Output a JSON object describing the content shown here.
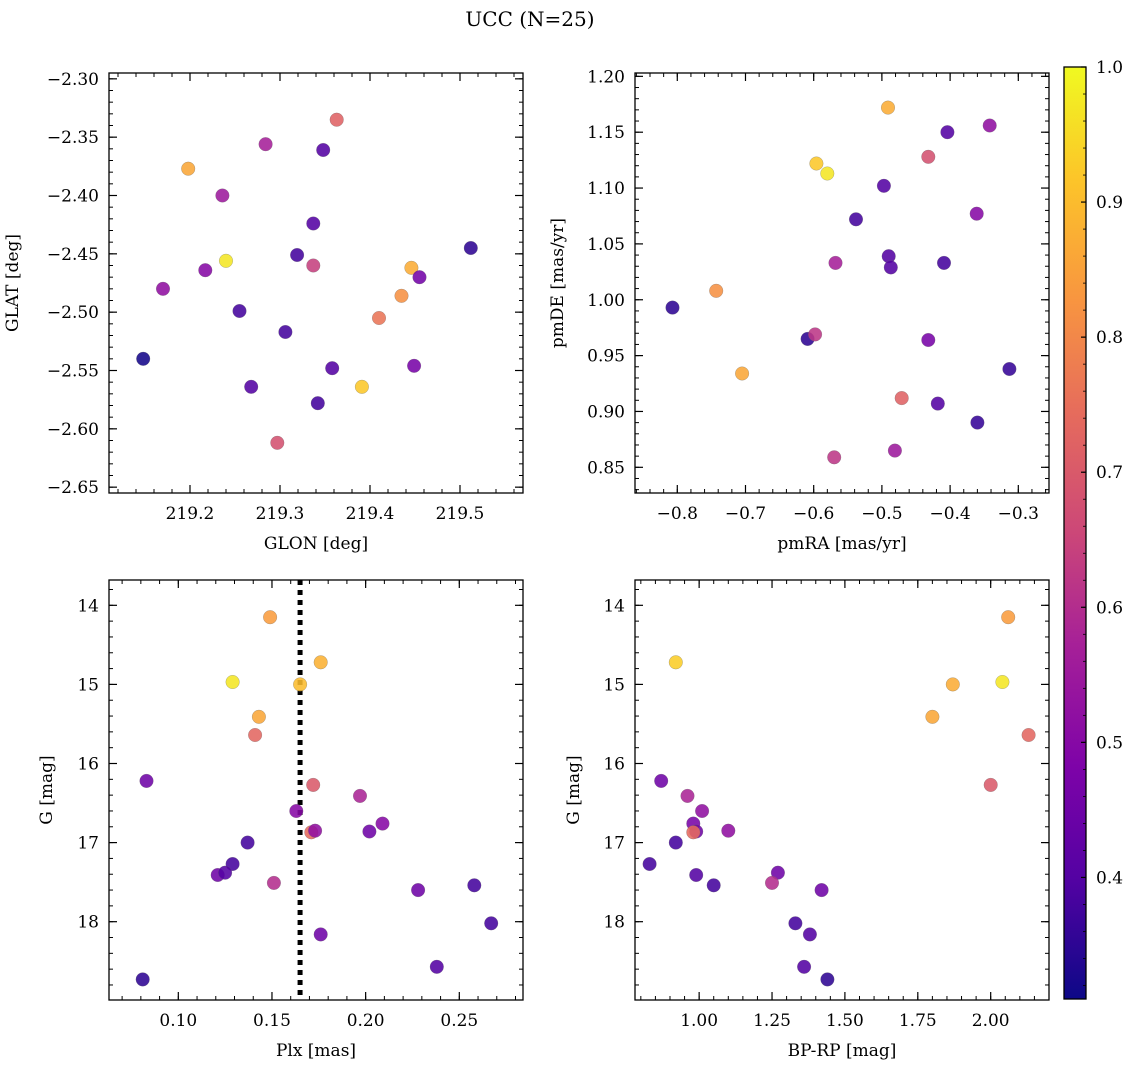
{
  "figure": {
    "title": "UCC (N=25)"
  },
  "colorbar": {
    "range": [
      0.31,
      1.0
    ],
    "ticks": [
      0.4,
      0.5,
      0.6,
      0.7,
      0.8,
      0.9,
      1.0
    ],
    "tick_labels": [
      "0.4",
      "0.5",
      "0.6",
      "0.7",
      "0.8",
      "0.9",
      "1.0"
    ],
    "colormap": "plasma"
  },
  "chart_data": [
    {
      "type": "scatter",
      "id": "glon-glat",
      "title": "",
      "xlabel": "GLON [deg]",
      "ylabel": "GLAT [deg]",
      "xlim": [
        219.11,
        219.57
      ],
      "ylim": [
        -2.655,
        -2.295
      ],
      "y_inverted": false,
      "xticks": [
        219.1,
        219.2,
        219.3,
        219.4,
        219.5
      ],
      "xtick_labels": [
        "219.1",
        "219.2",
        "219.3",
        "219.4",
        "219.5"
      ],
      "yticks": [
        -2.3,
        -2.35,
        -2.4,
        -2.45,
        -2.5,
        -2.55,
        -2.6,
        -2.65
      ],
      "ytick_labels": [
        "−2.30",
        "−2.35",
        "−2.40",
        "−2.45",
        "−2.50",
        "−2.55",
        "−2.60",
        "−2.65"
      ],
      "x_minor_step": 0.02,
      "y_minor_step": 0.01,
      "x": [
        219.198,
        219.236,
        219.24,
        219.17,
        219.217,
        219.284,
        219.348,
        219.363,
        219.337,
        219.319,
        219.337,
        219.449,
        219.446,
        219.455,
        219.435,
        219.41,
        219.512,
        219.306,
        219.255,
        219.148,
        219.268,
        219.358,
        219.391,
        219.342,
        219.297
      ],
      "y": [
        -2.377,
        -2.4,
        -2.456,
        -2.48,
        -2.464,
        -2.356,
        -2.361,
        -2.335,
        -2.424,
        -2.451,
        -2.46,
        -2.546,
        -2.462,
        -2.47,
        -2.486,
        -2.505,
        -2.445,
        -2.517,
        -2.499,
        -2.54,
        -2.564,
        -2.548,
        -2.564,
        -2.578,
        -2.612
      ],
      "color": [
        0.86,
        0.55,
        0.97,
        0.52,
        0.5,
        0.57,
        0.4,
        0.72,
        0.4,
        0.38,
        0.64,
        0.47,
        0.87,
        0.46,
        0.82,
        0.76,
        0.35,
        0.38,
        0.38,
        0.32,
        0.4,
        0.4,
        0.92,
        0.38,
        0.68
      ]
    },
    {
      "type": "scatter",
      "id": "pmra-pmde",
      "title": "",
      "xlabel": "pmRA [mas/yr]",
      "ylabel": "pmDE [mas/yr]",
      "xlim": [
        -0.862,
        -0.255
      ],
      "ylim": [
        0.827,
        1.203
      ],
      "y_inverted": false,
      "xticks": [
        -0.8,
        -0.7,
        -0.6,
        -0.5,
        -0.4,
        -0.3
      ],
      "xtick_labels": [
        "−0.8",
        "−0.7",
        "−0.6",
        "−0.5",
        "−0.4",
        "−0.3"
      ],
      "yticks": [
        0.85,
        0.9,
        0.95,
        1.0,
        1.05,
        1.1,
        1.15,
        1.2
      ],
      "ytick_labels": [
        "0.85",
        "0.90",
        "0.95",
        "1.00",
        "1.05",
        "1.10",
        "1.15",
        "1.20"
      ],
      "x_minor_step": 0.02,
      "y_minor_step": 0.01,
      "x": [
        -0.491,
        -0.596,
        -0.58,
        -0.404,
        -0.342,
        -0.432,
        -0.497,
        -0.361,
        -0.538,
        -0.49,
        -0.568,
        -0.487,
        -0.409,
        -0.807,
        -0.743,
        -0.609,
        -0.598,
        -0.705,
        -0.432,
        -0.313,
        -0.471,
        -0.418,
        -0.36,
        -0.481,
        -0.57
      ],
      "y": [
        1.172,
        1.122,
        1.113,
        1.15,
        1.156,
        1.128,
        1.102,
        1.077,
        1.072,
        1.039,
        1.033,
        1.029,
        1.033,
        0.993,
        1.008,
        0.965,
        0.969,
        0.934,
        0.964,
        0.938,
        0.912,
        0.907,
        0.89,
        0.865,
        0.859
      ],
      "color": [
        0.87,
        0.92,
        0.97,
        0.4,
        0.52,
        0.68,
        0.4,
        0.5,
        0.38,
        0.4,
        0.57,
        0.4,
        0.38,
        0.35,
        0.82,
        0.35,
        0.62,
        0.86,
        0.47,
        0.36,
        0.72,
        0.4,
        0.36,
        0.55,
        0.62
      ]
    },
    {
      "type": "scatter",
      "id": "plx-g",
      "title": "",
      "xlabel": "Plx [mas]",
      "ylabel": "G [mag]",
      "xlim": [
        0.063,
        0.284
      ],
      "ylim": [
        18.99,
        13.68
      ],
      "y_inverted": true,
      "vline": 0.165,
      "xticks": [
        0.1,
        0.15,
        0.2,
        0.25
      ],
      "xtick_labels": [
        "0.10",
        "0.15",
        "0.20",
        "0.25"
      ],
      "yticks": [
        14,
        15,
        16,
        17,
        18
      ],
      "ytick_labels": [
        "14",
        "15",
        "16",
        "17",
        "18"
      ],
      "x_minor_step": 0.01,
      "y_minor_step": 0.2,
      "x": [
        0.149,
        0.176,
        0.129,
        0.165,
        0.143,
        0.141,
        0.083,
        0.172,
        0.197,
        0.163,
        0.171,
        0.173,
        0.209,
        0.202,
        0.137,
        0.129,
        0.121,
        0.125,
        0.151,
        0.228,
        0.258,
        0.267,
        0.176,
        0.238,
        0.081
      ],
      "y": [
        14.15,
        14.72,
        14.97,
        15.0,
        15.41,
        15.64,
        16.22,
        16.27,
        16.41,
        16.6,
        16.87,
        16.85,
        16.76,
        16.86,
        17.0,
        17.27,
        17.41,
        17.38,
        17.51,
        17.6,
        17.54,
        18.02,
        18.16,
        18.57,
        18.73
      ],
      "color": [
        0.84,
        0.88,
        0.97,
        0.9,
        0.86,
        0.73,
        0.45,
        0.7,
        0.58,
        0.5,
        0.74,
        0.52,
        0.5,
        0.45,
        0.38,
        0.38,
        0.45,
        0.4,
        0.6,
        0.45,
        0.38,
        0.38,
        0.45,
        0.4,
        0.35
      ]
    },
    {
      "type": "scatter",
      "id": "bprp-g",
      "title": "",
      "xlabel": "BP-RP [mag]",
      "ylabel": "G [mag]",
      "xlim": [
        0.78,
        2.2
      ],
      "ylim": [
        18.99,
        13.68
      ],
      "y_inverted": true,
      "xticks": [
        1.0,
        1.25,
        1.5,
        1.75,
        2.0
      ],
      "xtick_labels": [
        "1.00",
        "1.25",
        "1.50",
        "1.75",
        "2.00"
      ],
      "yticks": [
        14,
        15,
        16,
        17,
        18
      ],
      "ytick_labels": [
        "14",
        "15",
        "16",
        "17",
        "18"
      ],
      "x_minor_step": 0.05,
      "y_minor_step": 0.2,
      "x": [
        2.06,
        0.92,
        2.04,
        1.87,
        1.8,
        2.13,
        0.87,
        2.0,
        0.96,
        1.01,
        0.98,
        0.99,
        1.1,
        0.98,
        0.92,
        0.83,
        0.99,
        1.05,
        1.27,
        1.25,
        1.42,
        1.33,
        1.38,
        1.36,
        1.44
      ],
      "y": [
        14.15,
        14.72,
        14.97,
        15.0,
        15.41,
        15.64,
        16.22,
        16.27,
        16.41,
        16.6,
        16.76,
        16.86,
        16.85,
        16.87,
        17.0,
        17.27,
        17.41,
        17.54,
        17.38,
        17.51,
        17.6,
        18.02,
        18.16,
        18.57,
        18.73
      ],
      "color": [
        0.84,
        0.93,
        0.97,
        0.87,
        0.86,
        0.73,
        0.45,
        0.7,
        0.58,
        0.52,
        0.47,
        0.45,
        0.52,
        0.74,
        0.38,
        0.38,
        0.4,
        0.38,
        0.45,
        0.6,
        0.45,
        0.38,
        0.4,
        0.4,
        0.35
      ]
    }
  ]
}
